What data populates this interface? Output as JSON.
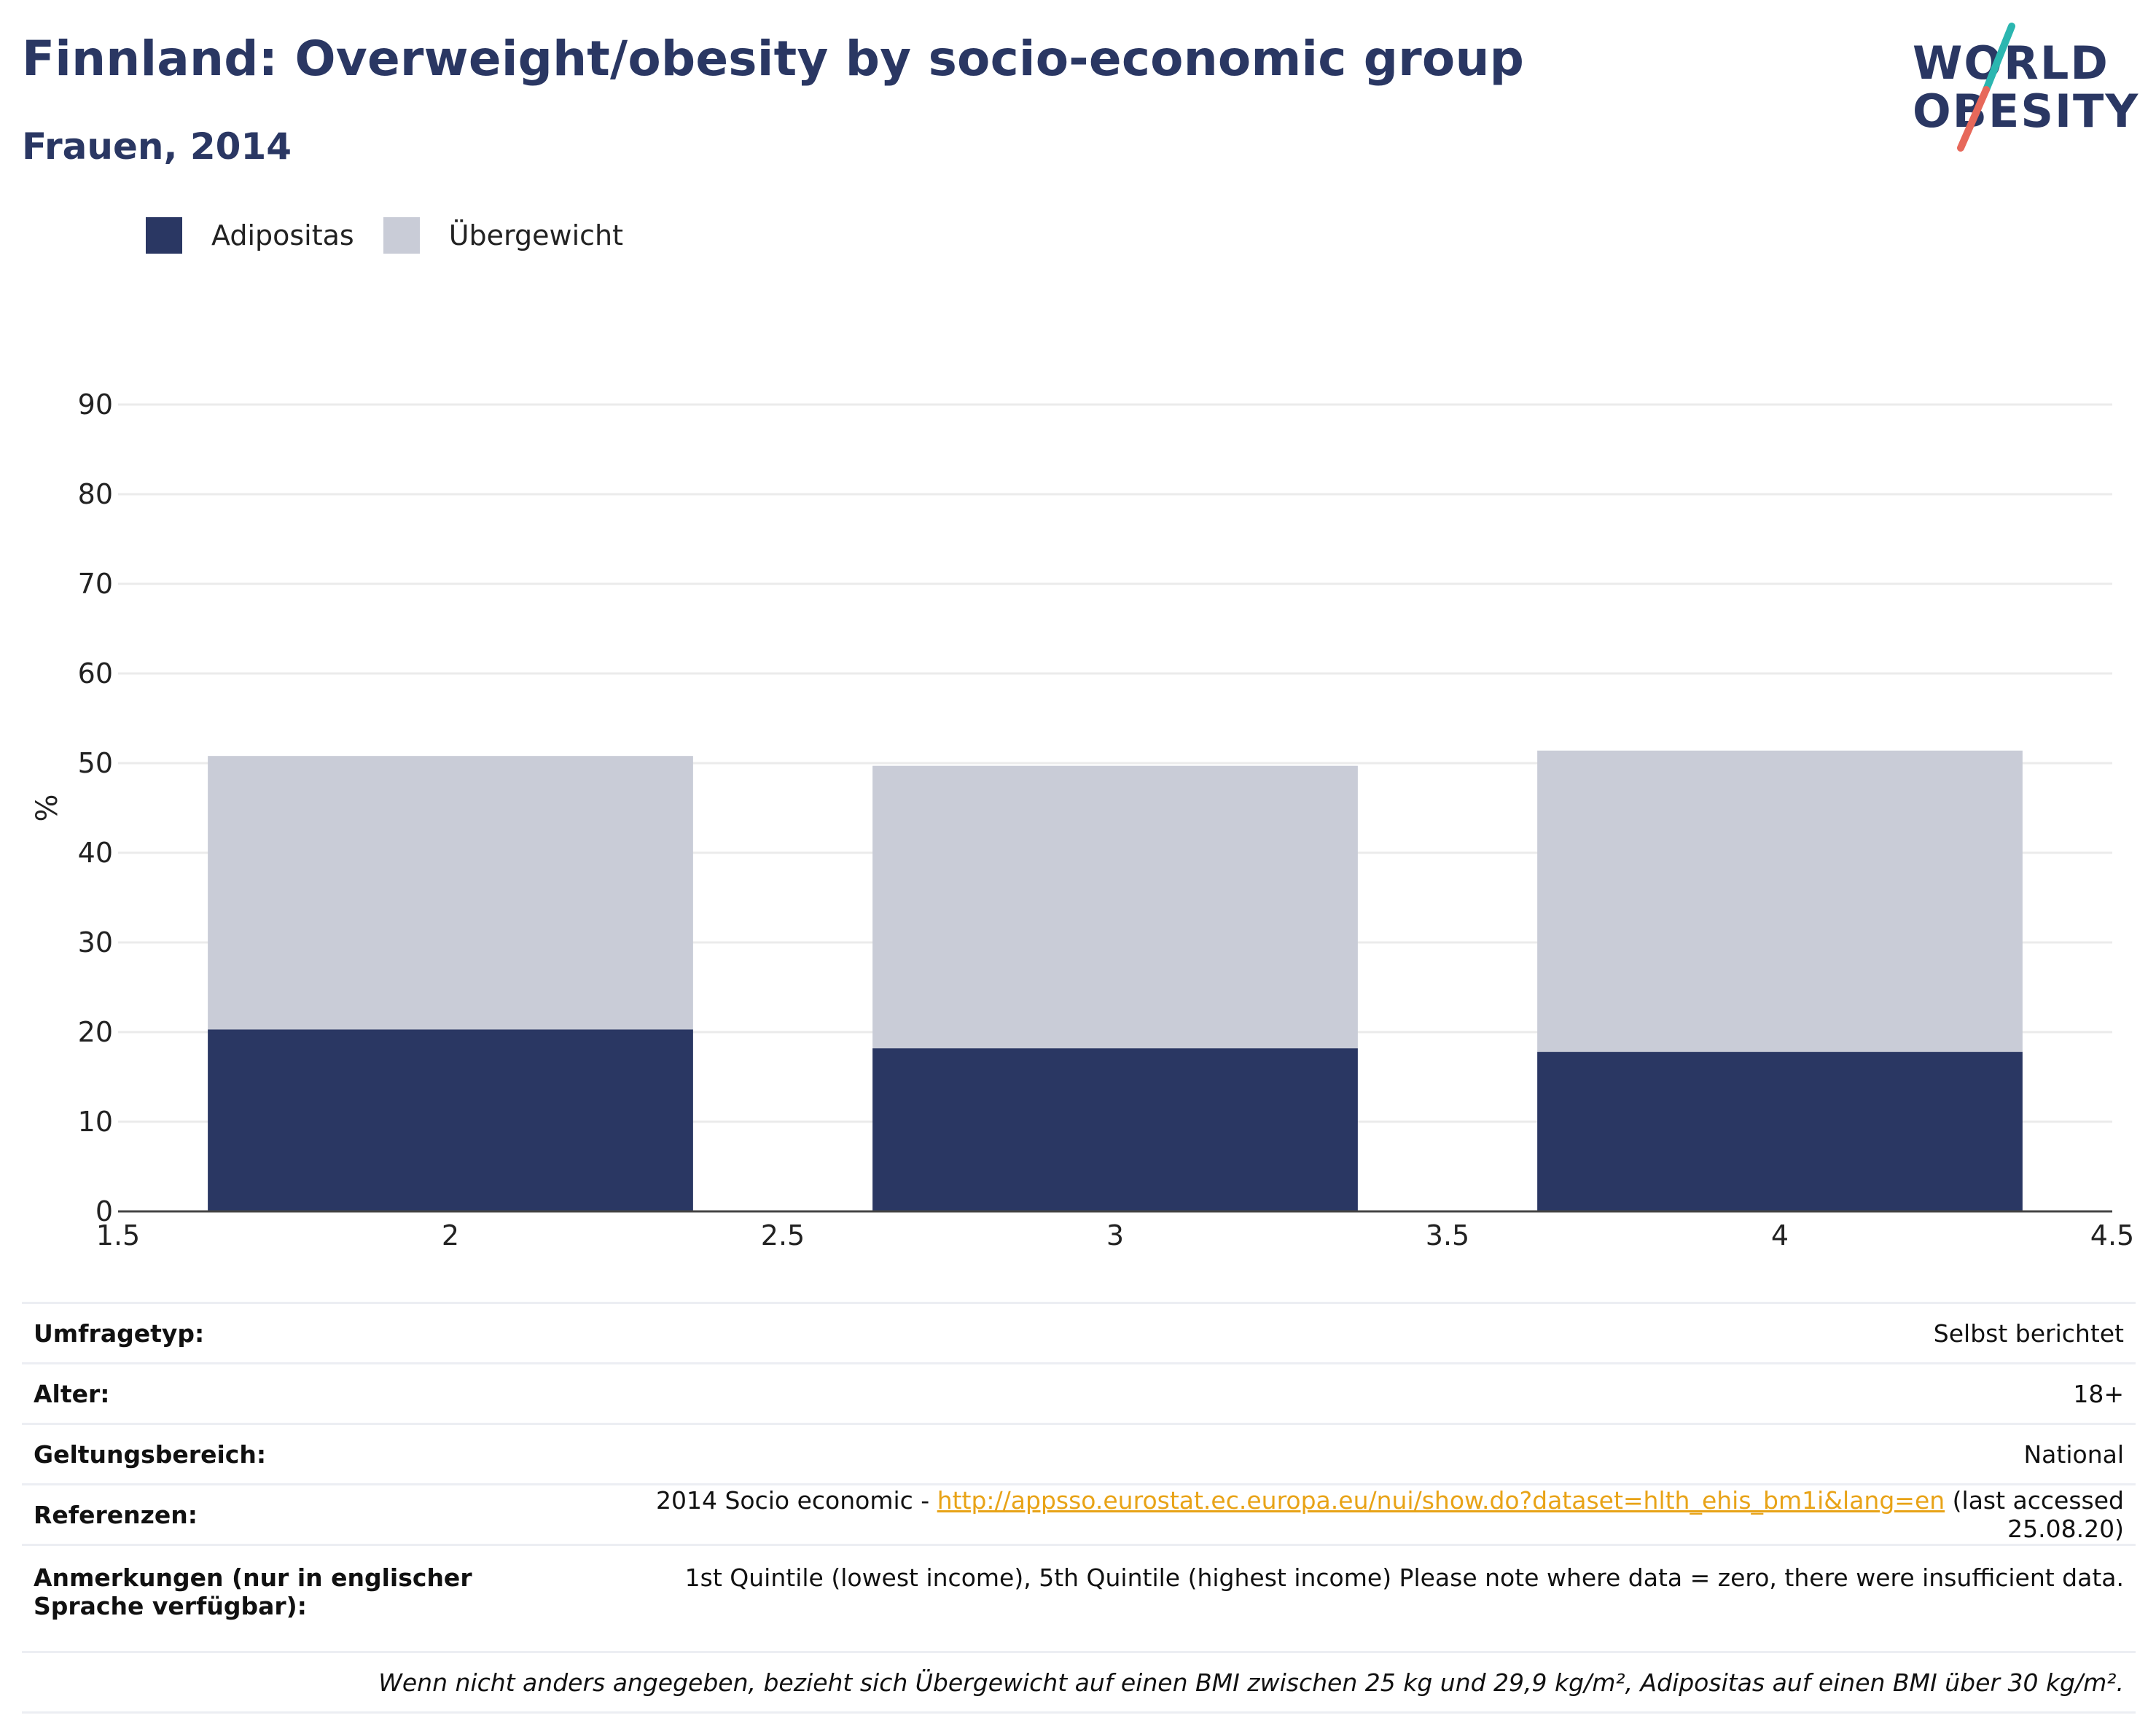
{
  "header": {
    "title": "Finnland: Overweight/obesity by socio-economic group",
    "subtitle": "Frauen, 2014"
  },
  "logo": {
    "line1": "WORLD",
    "line2": "OBESITY"
  },
  "colors": {
    "obesity": "#2a3763",
    "overweight": "#c9ccd7",
    "accent_teal": "#2bb6b0",
    "accent_red": "#e7685a"
  },
  "chart_data": {
    "type": "bar",
    "stacked": true,
    "x": [
      2,
      3,
      4
    ],
    "bar_width": 0.73,
    "series": [
      {
        "name": "Adipositas",
        "values": [
          20.3,
          18.2,
          17.8
        ]
      },
      {
        "name": "Übergewicht",
        "values": [
          30.5,
          31.5,
          33.6
        ]
      }
    ],
    "xlim": [
      1.5,
      4.5
    ],
    "xticks": [
      "1.5",
      "2",
      "2.5",
      "3",
      "3.5",
      "4",
      "4.5"
    ],
    "ylim": [
      0,
      90
    ],
    "yticks": [
      "0",
      "10",
      "20",
      "30",
      "40",
      "50",
      "60",
      "70",
      "80",
      "90"
    ],
    "ylabel": "%",
    "grid": true,
    "legend_position": "top-left"
  },
  "info": {
    "survey_type_label": "Umfragetyp:",
    "survey_type_value": "Selbst berichtet",
    "age_label": "Alter:",
    "age_value": "18+",
    "scope_label": "Geltungsbereich:",
    "scope_value": "National",
    "references_label": "Referenzen:",
    "references_prefix": "2014 Socio economic - ",
    "references_link": "http://appsso.eurostat.ec.europa.eu/nui/show.do?dataset=hlth_ehis_bm1i&lang=en",
    "references_suffix": " (last accessed 25.08.20)",
    "notes_label": "Anmerkungen (nur in englischer Sprache verfügbar):",
    "notes_value": "1st Quintile (lowest income), 5th Quintile (highest income) Please note where data = zero, there were insufficient data.",
    "footnote": "Wenn nicht anders angegeben, bezieht sich Übergewicht auf einen BMI zwischen 25 kg und 29,9 kg/m², Adipositas auf einen BMI über 30 kg/m²."
  }
}
